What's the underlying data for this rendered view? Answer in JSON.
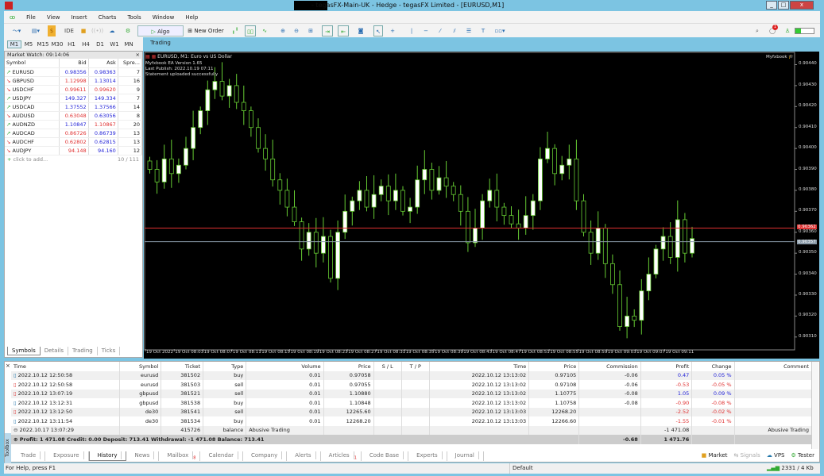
{
  "window": {
    "title": "- tegasFX-Main-UK - Hedge - tegasFX Limited - [EURUSD,M1]",
    "minimize": "_",
    "maximize": "□",
    "close": "x"
  },
  "menu": [
    "File",
    "View",
    "Insert",
    "Charts",
    "Tools",
    "Window",
    "Help"
  ],
  "toolbar": {
    "ide": "IDE",
    "algo_trading": "Algo Trading",
    "new_order": "New Order",
    "notifications_badge": "1"
  },
  "timeframes": [
    "M1",
    "M5",
    "M15",
    "M30",
    "H1",
    "H4",
    "D1",
    "W1",
    "MN"
  ],
  "active_timeframe": "M1",
  "market_watch": {
    "title": "Market Watch: 09:14:06",
    "columns": [
      "Symbol",
      "Bid",
      "Ask",
      "Spre..."
    ],
    "rows": [
      {
        "symbol": "EURUSD",
        "bid": "0.98356",
        "ask": "0.98363",
        "spread": "7",
        "dir": "up",
        "bid_c": "up",
        "ask_c": "up"
      },
      {
        "symbol": "GBPUSD",
        "bid": "1.12998",
        "ask": "1.13014",
        "spread": "16",
        "dir": "dn",
        "bid_c": "dn",
        "ask_c": "up"
      },
      {
        "symbol": "USDCHF",
        "bid": "0.99611",
        "ask": "0.99620",
        "spread": "9",
        "dir": "dn",
        "bid_c": "dn",
        "ask_c": "dn"
      },
      {
        "symbol": "USDJPY",
        "bid": "149.327",
        "ask": "149.334",
        "spread": "7",
        "dir": "up",
        "bid_c": "up",
        "ask_c": "up"
      },
      {
        "symbol": "USDCAD",
        "bid": "1.37552",
        "ask": "1.37566",
        "spread": "14",
        "dir": "up",
        "bid_c": "up",
        "ask_c": "up"
      },
      {
        "symbol": "AUDUSD",
        "bid": "0.63048",
        "ask": "0.63056",
        "spread": "8",
        "dir": "dn",
        "bid_c": "dn",
        "ask_c": "up"
      },
      {
        "symbol": "AUDNZD",
        "bid": "1.10847",
        "ask": "1.10867",
        "spread": "20",
        "dir": "up",
        "bid_c": "up",
        "ask_c": "dn"
      },
      {
        "symbol": "AUDCAD",
        "bid": "0.86726",
        "ask": "0.86739",
        "spread": "13",
        "dir": "up",
        "bid_c": "dn",
        "ask_c": "up"
      },
      {
        "symbol": "AUDCHF",
        "bid": "0.62802",
        "ask": "0.62815",
        "spread": "13",
        "dir": "dn",
        "bid_c": "dn",
        "ask_c": "up"
      },
      {
        "symbol": "AUDJPY",
        "bid": "94.148",
        "ask": "94.160",
        "spread": "12",
        "dir": "dn",
        "bid_c": "dn",
        "ask_c": "up"
      }
    ],
    "add": "click to add...",
    "count": "10 / 111",
    "tabs": [
      "Symbols",
      "Details",
      "Trading",
      "Ticks"
    ]
  },
  "chart": {
    "header": "EURUSD, M1:  Euro vs US Dollar",
    "info": [
      "Myfxbook EA Version 1.65",
      "Last Publish: 2022.10.19 07:11",
      "Statement uploaded successfully"
    ],
    "brand": "Myfxbook",
    "bid_label": "0.90362",
    "ask_label": "0.90357",
    "bid_color": "#e03030",
    "line2_color": "#8a9aa8",
    "bull_color": "#ffffff",
    "bear_color": "#000000",
    "wick_color": "#66cc33"
  },
  "chart_data": {
    "type": "candlestick",
    "symbol": "EURUSD",
    "timeframe": "M1",
    "ylim": [
      0.90305,
      0.90445
    ],
    "y_ticks": [
      "0.90440",
      "0.90430",
      "0.90420",
      "0.90410",
      "0.90400",
      "0.90390",
      "0.90380",
      "0.90370",
      "0.90360",
      "0.90350",
      "0.90340",
      "0.90330",
      "0.90320",
      "0.90310"
    ],
    "x_ticks": [
      "19 Oct 2022",
      "19 Oct 08:03",
      "19 Oct 08:07",
      "19 Oct 08:11",
      "19 Oct 08:15",
      "19 Oct 08:19",
      "19 Oct 08:23",
      "19 Oct 08:27",
      "19 Oct 08:31",
      "19 Oct 08:35",
      "19 Oct 08:39",
      "19 Oct 08:43",
      "19 Oct 08:47",
      "19 Oct 08:51",
      "19 Oct 08:55",
      "19 Oct 08:59",
      "19 Oct 09:03",
      "19 Oct 09:07",
      "19 Oct 09:11"
    ],
    "closes": [
      0.9039,
      0.90384,
      0.90395,
      0.90388,
      0.90392,
      0.904,
      0.9041,
      0.90418,
      0.90428,
      0.90432,
      0.90425,
      0.9043,
      0.90422,
      0.90418,
      0.9041,
      0.904,
      0.90395,
      0.90385,
      0.9038,
      0.90372,
      0.90365,
      0.90352,
      0.9036,
      0.9035,
      0.90358,
      0.90338,
      0.9036,
      0.9037,
      0.90375,
      0.9038,
      0.90372,
      0.90378,
      0.90382,
      0.90375,
      0.9038,
      0.9037,
      0.90372,
      0.90385,
      0.9039,
      0.9038,
      0.90386,
      0.90382,
      0.90378,
      0.9037,
      0.90355,
      0.90362,
      0.90375,
      0.9038,
      0.90372,
      0.90368,
      0.90364,
      0.90362,
      0.90368,
      0.90375,
      0.90395,
      0.904,
      0.90388,
      0.90392,
      0.90395,
      0.90375,
      0.9036,
      0.9035,
      0.90362,
      0.90345,
      0.90335,
      0.90315,
      0.9032,
      0.90318,
      0.90332,
      0.9034,
      0.90352,
      0.90358,
      0.90348,
      0.90366,
      0.9035,
      0.90357
    ]
  },
  "history": {
    "columns": [
      "Time",
      "Symbol",
      "Ticket",
      "Type",
      "Volume",
      "Price",
      "S / L",
      "T / P",
      "Time",
      "Price",
      "Commission",
      "Profit",
      "Change",
      "Comment"
    ],
    "rows": [
      [
        "2022.10.12 12:50:58",
        "eurusd",
        "381502",
        "buy",
        "0.01",
        "0.97058",
        "",
        "",
        "2022.10.12 13:13:02",
        "0.97105",
        "-0.06",
        "0.47",
        "0.05 %",
        ""
      ],
      [
        "2022.10.12 12:50:58",
        "eurusd",
        "381503",
        "sell",
        "0.01",
        "0.97055",
        "",
        "",
        "2022.10.12 13:13:02",
        "0.97108",
        "-0.06",
        "-0.53",
        "-0.05 %",
        ""
      ],
      [
        "2022.10.12 13:07:19",
        "gbpusd",
        "381521",
        "sell",
        "0.01",
        "1.10880",
        "",
        "",
        "2022.10.12 13:13:02",
        "1.10775",
        "-0.08",
        "1.05",
        "0.09 %",
        ""
      ],
      [
        "2022.10.12 13:12:31",
        "gbpusd",
        "381538",
        "buy",
        "0.01",
        "1.10848",
        "",
        "",
        "2022.10.12 13:13:02",
        "1.10758",
        "-0.08",
        "-0.90",
        "-0.08 %",
        ""
      ],
      [
        "2022.10.12 13:12:50",
        "de30",
        "381541",
        "sell",
        "0.01",
        "12265.60",
        "",
        "",
        "2022.10.12 13:13:03",
        "12268.20",
        "",
        "-2.52",
        "-0.02 %",
        ""
      ],
      [
        "2022.10.12 13:11:54",
        "de30",
        "381534",
        "buy",
        "0.01",
        "12268.20",
        "",
        "",
        "2022.10.12 13:13:03",
        "12266.60",
        "",
        "-1.55",
        "-0.01 %",
        ""
      ],
      [
        "2022.10.17 13:07:29",
        "",
        "415726",
        "balance",
        "Abusive Trading",
        "",
        "",
        "",
        "",
        "",
        "",
        "-1 471.08",
        "",
        "Abusive Trading"
      ]
    ],
    "summary": "Profit: 1 471.08  Credit: 0.00  Deposit: 713.41  Withdrawal: -1 471.08  Balance: 713.41",
    "summary_commission": "-0.68",
    "summary_profit": "1 471.76"
  },
  "toolbox": {
    "label": "Toolbox",
    "tabs": [
      "Trade",
      "Exposure",
      "History",
      "News",
      "Mailbox",
      "Calendar",
      "Company",
      "Alerts",
      "Articles",
      "Code Base",
      "Experts",
      "Journal"
    ],
    "active": "History",
    "mailbox_badge": "8",
    "articles_badge": "1",
    "right": [
      "Market",
      "Signals",
      "VPS",
      "Tester"
    ]
  },
  "status": {
    "help": "For Help, press F1",
    "profile": "Default",
    "traffic": "2331 / 4 Kb"
  }
}
